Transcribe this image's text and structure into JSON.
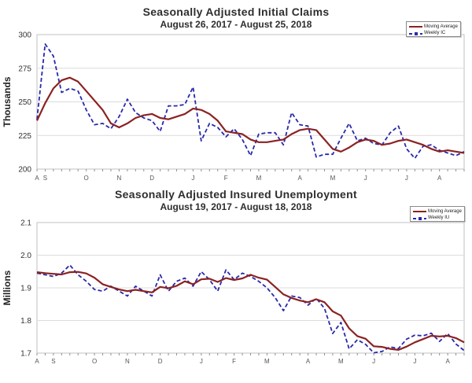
{
  "colors": {
    "moving_average": "#8B2222",
    "weekly": "#2929AA",
    "grid": "#DCDCDC",
    "plot_border": "#C0C0C0",
    "tick_mark": "#909090",
    "tick_label": "#333333",
    "month_label": "#555555",
    "axis_title": "#222222"
  },
  "charts": [
    {
      "id": "initial-claims",
      "title": "Seasonally Adjusted Initial Claims",
      "subtitle": "August 26, 2017 - August 25, 2018",
      "y_axis_title": "Thousands",
      "legend": [
        {
          "label": "Moving Average",
          "color": "#8B2222",
          "style": "solid"
        },
        {
          "label": "Weekly IC",
          "color": "#2929AA",
          "style": "dashed"
        }
      ]
    },
    {
      "id": "insured-unemployment",
      "title": "Seasonally Adjusted Insured Unemployment",
      "subtitle": "August 19, 2017 - August 18, 2018",
      "y_axis_title": "Millions",
      "legend": [
        {
          "label": "Moving Average",
          "color": "#8B2222",
          "style": "solid"
        },
        {
          "label": "Weekly IU",
          "color": "#2929AA",
          "style": "dashed"
        }
      ]
    }
  ],
  "chart_data": [
    {
      "type": "line",
      "title": "Seasonally Adjusted Initial Claims",
      "subtitle": "August 26, 2017 - August 25, 2018",
      "ylabel": "Thousands",
      "ylim": [
        200,
        300
      ],
      "yticks": [
        200,
        225,
        250,
        275,
        300
      ],
      "y_decimals": 0,
      "grid": true,
      "legend_position": "top-right",
      "n_points": 53,
      "x_unit": "week",
      "x_labels": [
        {
          "i": 0,
          "label": "A"
        },
        {
          "i": 1,
          "label": "S"
        },
        {
          "i": 6,
          "label": "O"
        },
        {
          "i": 10,
          "label": "N"
        },
        {
          "i": 14,
          "label": "D"
        },
        {
          "i": 19,
          "label": "J"
        },
        {
          "i": 23,
          "label": "F"
        },
        {
          "i": 27,
          "label": "M"
        },
        {
          "i": 32,
          "label": "A"
        },
        {
          "i": 36,
          "label": "M"
        },
        {
          "i": 40,
          "label": "J"
        },
        {
          "i": 45,
          "label": "J"
        },
        {
          "i": 49,
          "label": "A"
        }
      ],
      "series": [
        {
          "name": "Moving Average",
          "color": "#8B2222",
          "line_style": "solid",
          "values": [
            236,
            249,
            260,
            266,
            268,
            265,
            258,
            251,
            244,
            234,
            231,
            234,
            238,
            240,
            241,
            238,
            237,
            239,
            241,
            245,
            244,
            241,
            236,
            228,
            227,
            226,
            222,
            220,
            220,
            221,
            222,
            226,
            229,
            230,
            229,
            222,
            215,
            213,
            216,
            220,
            222,
            221,
            218,
            219,
            221,
            222,
            220,
            218,
            215,
            213,
            214,
            213,
            212
          ]
        },
        {
          "name": "Weekly IC",
          "color": "#2929AA",
          "line_style": "dashed",
          "values": [
            237,
            293,
            284,
            257,
            260,
            258,
            244,
            233,
            234,
            230,
            239,
            252,
            242,
            238,
            236,
            228,
            247,
            247,
            248,
            261,
            221,
            234,
            231,
            224,
            230,
            222,
            210,
            226,
            227,
            227,
            218,
            242,
            233,
            232,
            209,
            211,
            211,
            223,
            234,
            221,
            223,
            219,
            218,
            227,
            232,
            215,
            208,
            217,
            218,
            214,
            212,
            210,
            213
          ]
        }
      ]
    },
    {
      "type": "line",
      "title": "Seasonally Adjusted Insured Unemployment",
      "subtitle": "August 19, 2017 - August 18, 2018",
      "ylabel": "Millions",
      "ylim": [
        1.7,
        2.1
      ],
      "yticks": [
        1.7,
        1.8,
        1.9,
        2.0,
        2.1
      ],
      "y_decimals": 1,
      "grid": true,
      "legend_position": "top-right",
      "n_points": 53,
      "x_unit": "week",
      "x_labels": [
        {
          "i": 0,
          "label": "A"
        },
        {
          "i": 2,
          "label": "S"
        },
        {
          "i": 7,
          "label": "O"
        },
        {
          "i": 11,
          "label": "N"
        },
        {
          "i": 15,
          "label": "D"
        },
        {
          "i": 20,
          "label": "J"
        },
        {
          "i": 24,
          "label": "F"
        },
        {
          "i": 28,
          "label": "M"
        },
        {
          "i": 33,
          "label": "A"
        },
        {
          "i": 37,
          "label": "M"
        },
        {
          "i": 41,
          "label": "J"
        },
        {
          "i": 46,
          "label": "J"
        },
        {
          "i": 50,
          "label": "A"
        }
      ],
      "series": [
        {
          "name": "Moving Average",
          "color": "#8B2222",
          "line_style": "solid",
          "values": [
            1.948,
            1.945,
            1.943,
            1.941,
            1.948,
            1.949,
            1.944,
            1.931,
            1.911,
            1.903,
            1.895,
            1.89,
            1.894,
            1.89,
            1.886,
            1.903,
            1.899,
            1.906,
            1.92,
            1.911,
            1.926,
            1.928,
            1.918,
            1.93,
            1.924,
            1.929,
            1.94,
            1.931,
            1.925,
            1.903,
            1.88,
            1.869,
            1.861,
            1.856,
            1.865,
            1.856,
            1.828,
            1.815,
            1.776,
            1.752,
            1.744,
            1.721,
            1.719,
            1.713,
            1.71,
            1.72,
            1.733,
            1.743,
            1.753,
            1.751,
            1.753,
            1.746,
            1.733
          ]
        },
        {
          "name": "Weekly IU",
          "color": "#2929AA",
          "line_style": "dashed",
          "values": [
            1.945,
            1.94,
            1.935,
            1.945,
            1.97,
            1.94,
            1.92,
            1.895,
            1.89,
            1.905,
            1.89,
            1.875,
            1.905,
            1.89,
            1.875,
            1.94,
            1.89,
            1.92,
            1.93,
            1.905,
            1.95,
            1.925,
            1.89,
            1.955,
            1.925,
            1.945,
            1.935,
            1.92,
            1.9,
            1.87,
            1.83,
            1.875,
            1.87,
            1.847,
            1.868,
            1.837,
            1.76,
            1.794,
            1.713,
            1.741,
            1.727,
            1.701,
            1.705,
            1.719,
            1.714,
            1.743,
            1.755,
            1.753,
            1.761,
            1.736,
            1.76,
            1.728,
            1.708
          ]
        }
      ]
    }
  ]
}
